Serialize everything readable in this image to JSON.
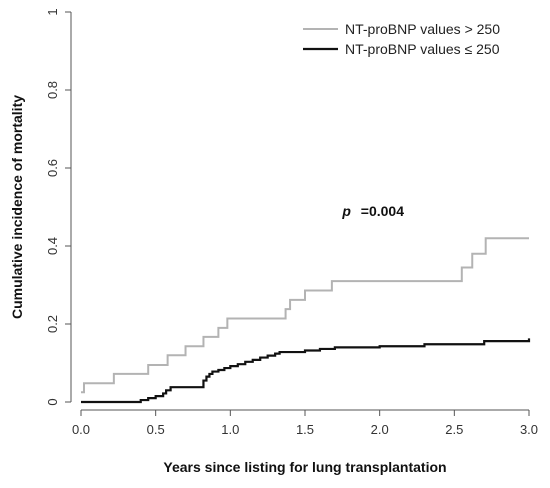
{
  "chart_data": {
    "type": "line",
    "step": true,
    "xlabel": "Years since listing for lung transplantation",
    "ylabel": "Cumulative incidence of mortality",
    "xlim": [
      0,
      3
    ],
    "ylim": [
      0,
      1
    ],
    "xticks": [
      0,
      0.5,
      1,
      1.5,
      2,
      2.5,
      3
    ],
    "xtick_labels": [
      "0.0",
      "0.5",
      "1.0",
      "1.5",
      "2.0",
      "2.5",
      "3.0"
    ],
    "yticks": [
      0,
      0.2,
      0.4,
      0.6,
      0.8,
      1
    ],
    "ytick_labels": [
      "0",
      "0.2",
      "0.4",
      "0.6",
      "0.8",
      "1"
    ],
    "grid": false,
    "legend_position": "top-right",
    "annotation": {
      "p_label": "p",
      "p_value": "=0.004",
      "x": 1.75,
      "y": 0.49
    },
    "series": [
      {
        "name": "NT-proBNP values > 250",
        "color": "#b3b3b3",
        "x": [
          0,
          0.02,
          0.22,
          0.45,
          0.58,
          0.7,
          0.82,
          0.92,
          0.98,
          1.37,
          1.4,
          1.5,
          1.68,
          2.55,
          2.62,
          2.71,
          3.0
        ],
        "y": [
          0.025,
          0.048,
          0.072,
          0.095,
          0.12,
          0.143,
          0.167,
          0.19,
          0.214,
          0.238,
          0.262,
          0.286,
          0.31,
          0.345,
          0.38,
          0.42,
          0.42
        ]
      },
      {
        "name": "NT-proBNP values ≤ 250",
        "color": "#111111",
        "x": [
          0,
          0.4,
          0.45,
          0.5,
          0.55,
          0.57,
          0.6,
          0.82,
          0.84,
          0.86,
          0.88,
          0.92,
          0.96,
          1.0,
          1.05,
          1.1,
          1.15,
          1.2,
          1.25,
          1.3,
          1.33,
          1.5,
          1.6,
          1.7,
          2.0,
          2.3,
          2.7,
          3.0
        ],
        "y": [
          0,
          0.005,
          0.01,
          0.015,
          0.022,
          0.03,
          0.038,
          0.055,
          0.065,
          0.072,
          0.078,
          0.082,
          0.087,
          0.092,
          0.097,
          0.103,
          0.108,
          0.114,
          0.119,
          0.124,
          0.128,
          0.132,
          0.136,
          0.14,
          0.143,
          0.148,
          0.156,
          0.163
        ]
      }
    ]
  }
}
